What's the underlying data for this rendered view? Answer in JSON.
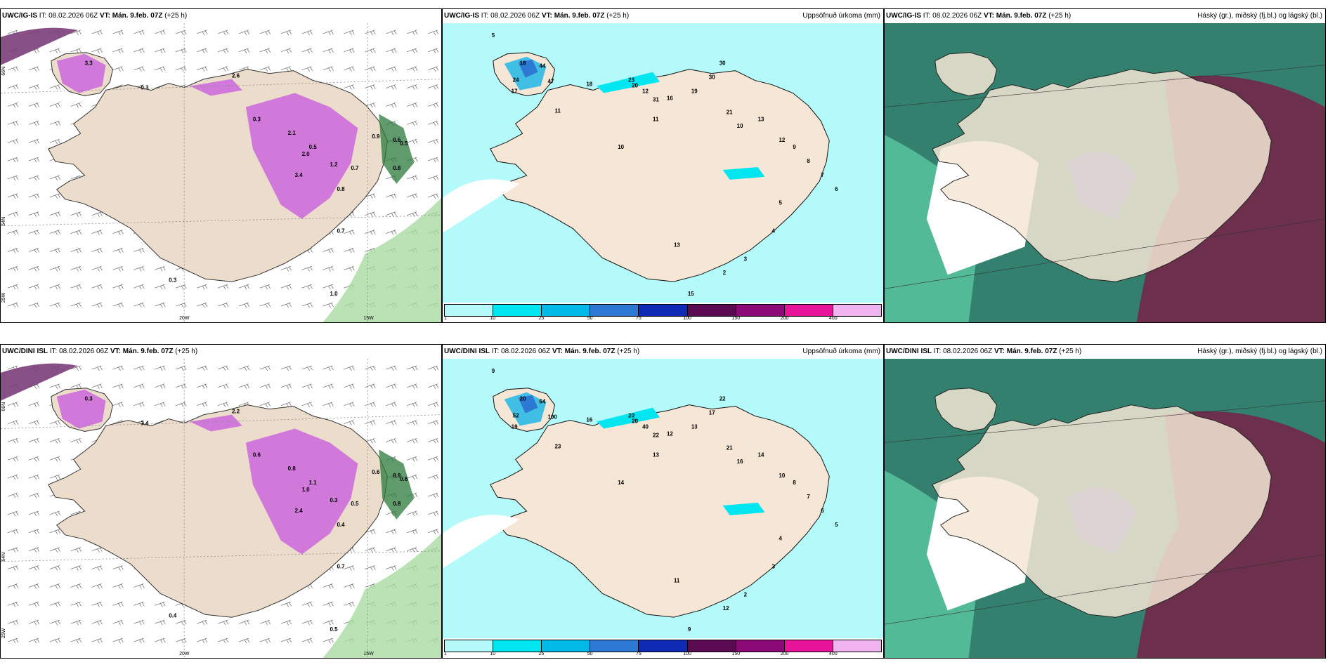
{
  "panels": [
    {
      "model": "UWC/IG-IS",
      "it": "IT: 08.02.2026 06Z",
      "vt_label": "VT:",
      "vt": "Mán. 9.feb. 07Z",
      "lead": "(+25 h)",
      "title": ""
    },
    {
      "model": "UWC/IG-IS",
      "it": "IT: 08.02.2026 06Z",
      "vt_label": "VT:",
      "vt": "Mán. 9.feb. 07Z",
      "lead": "(+25 h)",
      "title": "Uppsöfnuð úrkoma (mm)"
    },
    {
      "model": "UWC/IG-IS",
      "it": "IT: 08.02.2026 06Z",
      "vt_label": "VT:",
      "vt": "Mán. 9.feb. 07Z",
      "lead": "(+25 h)",
      "title": "Háský (gr.), miðský (fj.bl.) og lágský (bl.)"
    },
    {
      "model": "UWC/DINI ISL",
      "it": "IT: 08.02.2026 06Z",
      "vt_label": "VT:",
      "vt": "Mán. 9.feb. 07Z",
      "lead": "(+25 h)",
      "title": ""
    },
    {
      "model": "UWC/DINI ISL",
      "it": "IT: 08.02.2026 06Z",
      "vt_label": "VT:",
      "vt": "Mán. 9.feb. 07Z",
      "lead": "(+25 h)",
      "title": "Uppsöfnuð úrkoma (mm)"
    },
    {
      "model": "UWC/DINI ISL",
      "it": "IT: 08.02.2026 06Z",
      "vt_label": "VT:",
      "vt": "Mán. 9.feb. 07Z",
      "lead": "(+25 h)",
      "title": "Háský (gr.), miðský (fj.bl.) og lágský (bl.)"
    }
  ],
  "axes": {
    "lon_20": "20W",
    "lon_15": "15W",
    "lon_25": "25W",
    "lat_66": "66N",
    "lat_64": "64N"
  },
  "legend": {
    "ticks": [
      "1",
      "10",
      "25",
      "50",
      "75",
      "100",
      "150",
      "200",
      "400"
    ],
    "colors": [
      "#b4fafa",
      "#00e6f0",
      "#00b9e6",
      "#2d78d2",
      "#0f2ab4",
      "#5a0a50",
      "#8c0a78",
      "#e6149b",
      "#f0b4f0"
    ]
  },
  "snow_labels_top": [
    "3.3",
    "0.3",
    "2.6",
    "0.3",
    "2.1",
    "2.0",
    "1.2",
    "0.7",
    "0.8",
    "0.9",
    "0.7",
    "1.0",
    "0.6",
    "0.5",
    "0.8",
    "0.3",
    "3.4",
    "0.5"
  ],
  "snow_labels_bottom": [
    "0.3",
    "3.4",
    "2.2",
    "0.6",
    "0.8",
    "1.0",
    "0.3",
    "0.5",
    "0.4",
    "0.6",
    "0.7",
    "0.5",
    "0.9",
    "0.6",
    "0.8",
    "0.4",
    "2.4",
    "1.1"
  ],
  "precip_labels_top": [
    "5",
    "18",
    "44",
    "47",
    "24",
    "17",
    "11",
    "18",
    "23",
    "20",
    "12",
    "31",
    "16",
    "19",
    "30",
    "30",
    "21",
    "10",
    "13",
    "12",
    "9",
    "8",
    "7",
    "6",
    "5",
    "4",
    "3",
    "2",
    "15",
    "13",
    "11",
    "10"
  ],
  "precip_labels_bottom": [
    "9",
    "20",
    "64",
    "100",
    "52",
    "19",
    "23",
    "16",
    "20",
    "20",
    "40",
    "22",
    "12",
    "13",
    "17",
    "22",
    "21",
    "16",
    "14",
    "10",
    "8",
    "7",
    "6",
    "5",
    "4",
    "3",
    "2",
    "12",
    "9",
    "11",
    "13",
    "14"
  ]
}
